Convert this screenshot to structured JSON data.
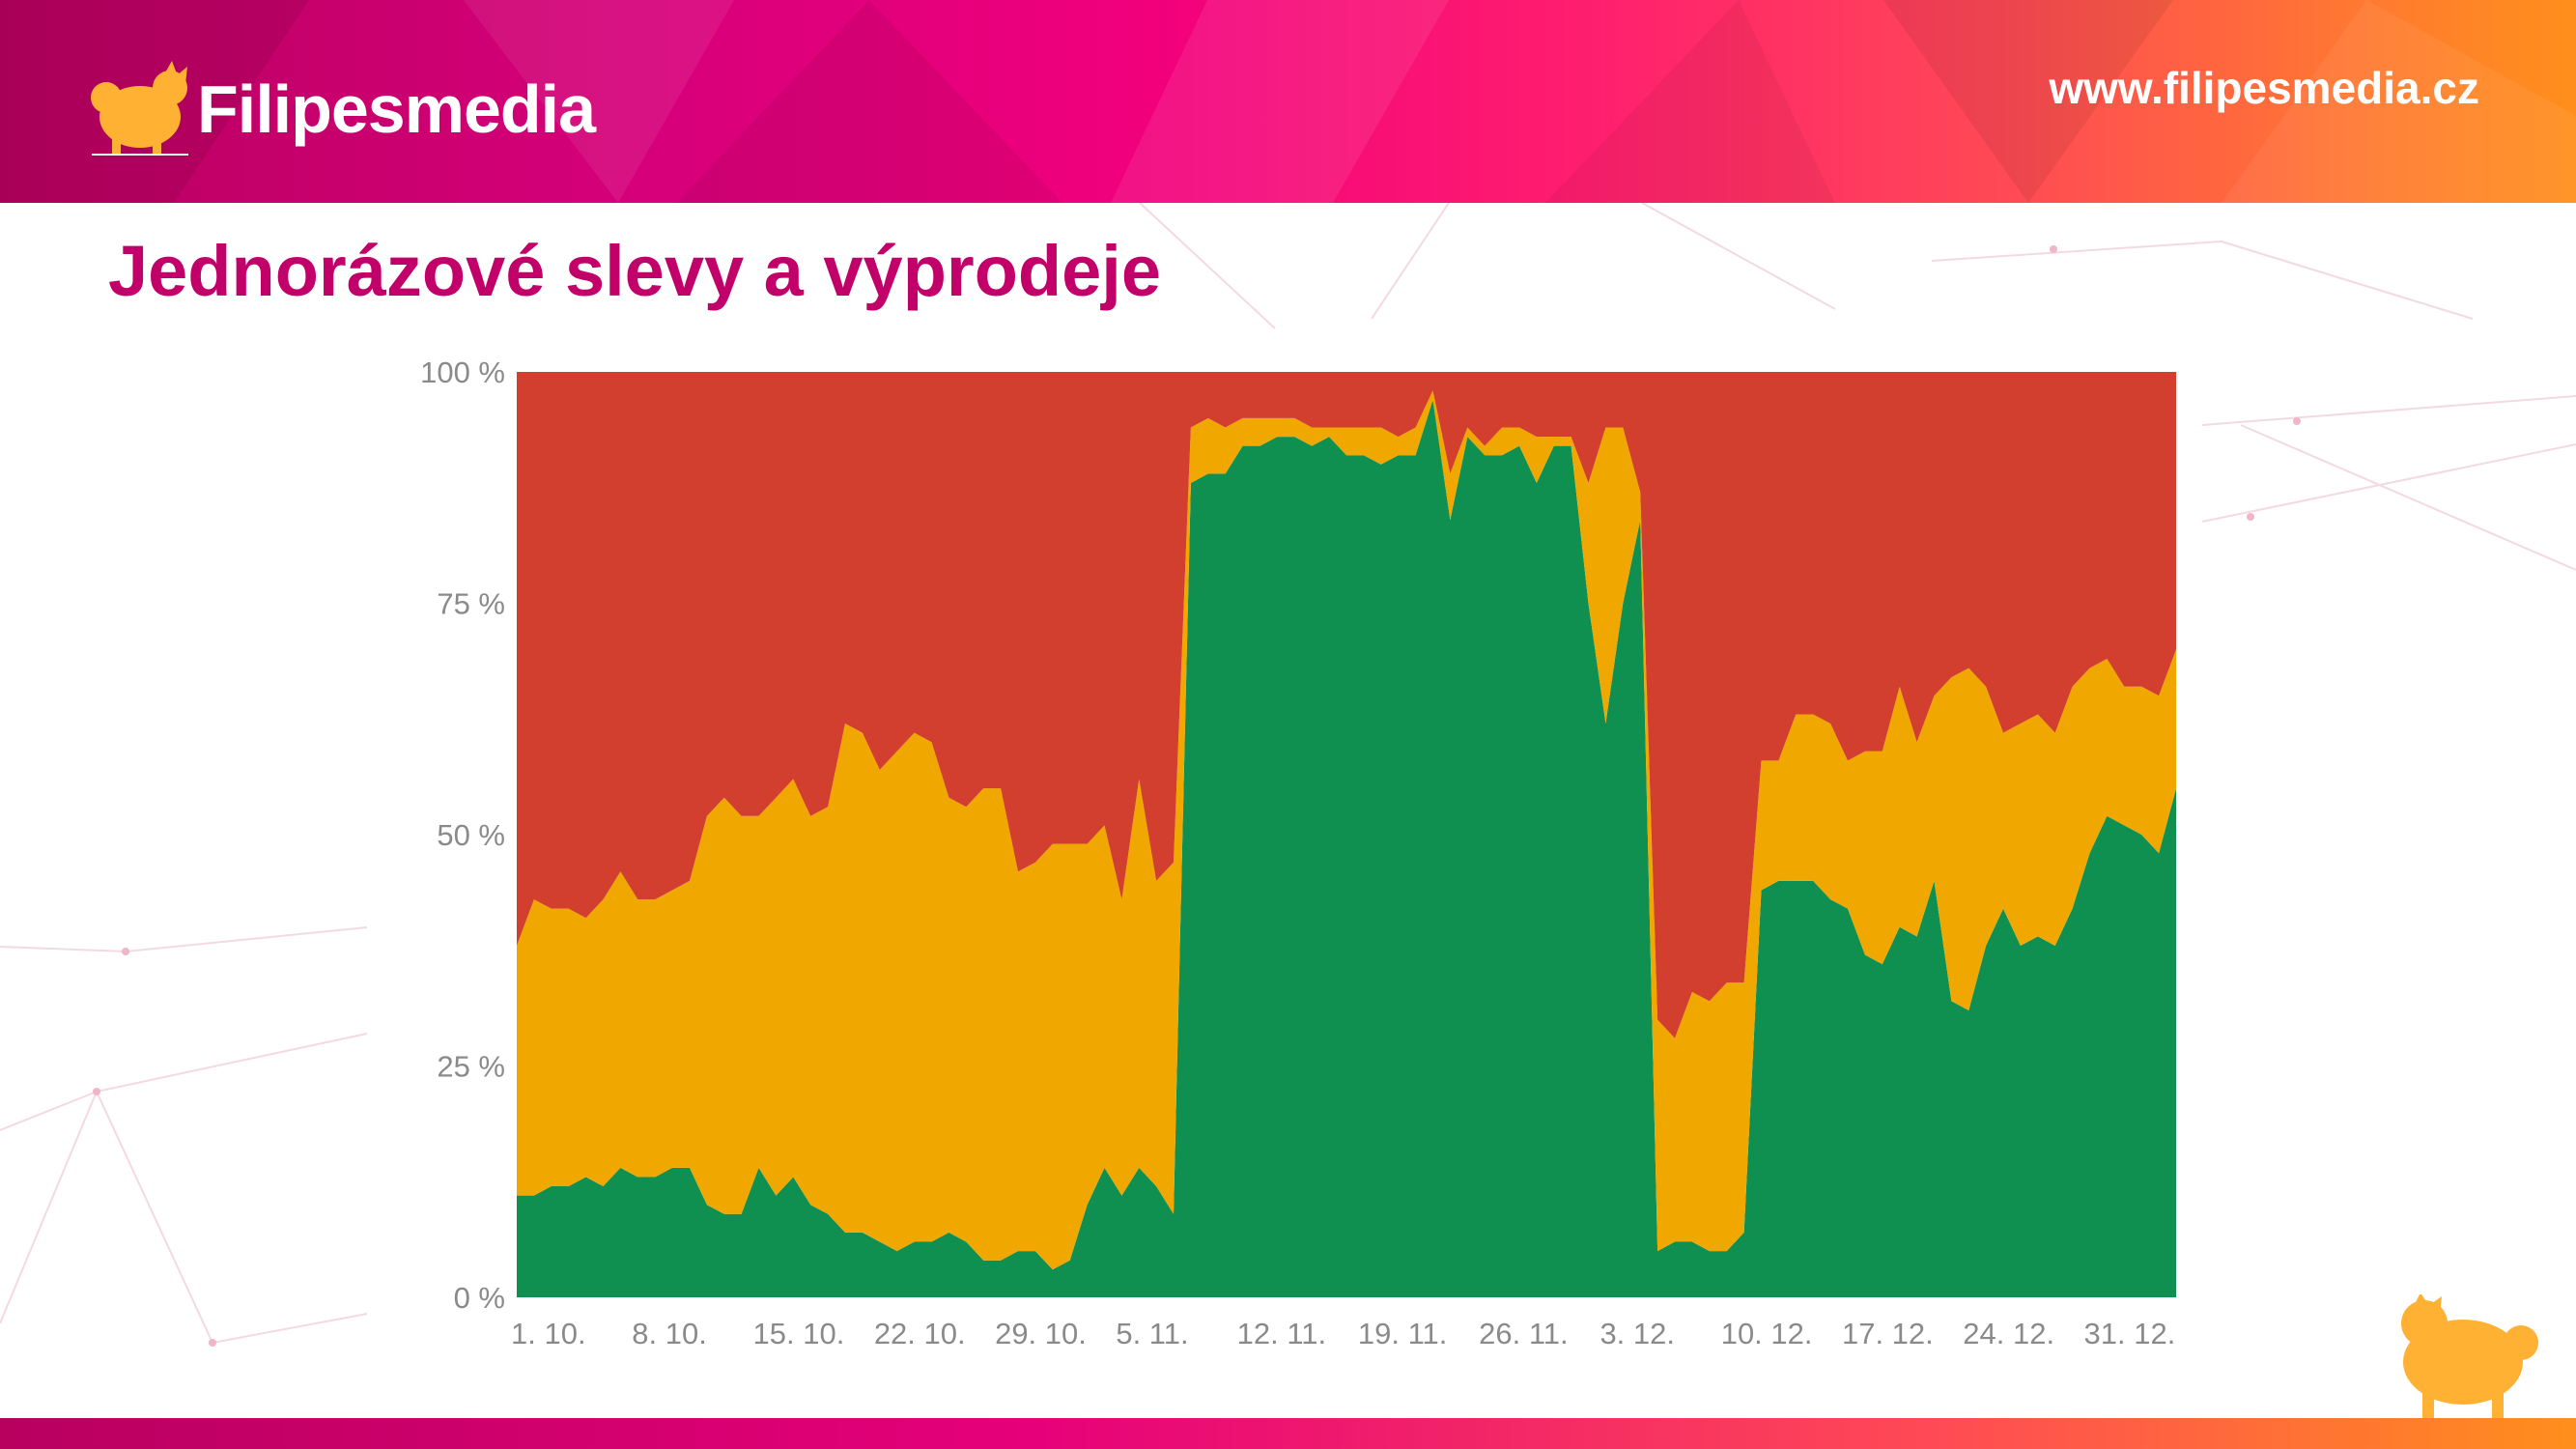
{
  "header": {
    "logo_text": "Filipesmedia",
    "site_url": "www.filipesmedia.cz"
  },
  "slide": {
    "title": "Jednorázové slevy a výprodeje"
  },
  "colors": {
    "green": "#0f8f50",
    "orange": "#f0a800",
    "red": "#d33f2f",
    "title": "#c2006a",
    "mascot": "#ffb133"
  },
  "icons": {
    "logo": "dog-logo-icon",
    "mascot": "dog-mascot-icon"
  },
  "chart_data": {
    "type": "area",
    "stacked": true,
    "normalized": true,
    "ylim": [
      0,
      100
    ],
    "y_ticks": [
      "0 %",
      "25 %",
      "50 %",
      "75 %",
      "100 %"
    ],
    "x_tick_labels": [
      "1. 10.",
      "8. 10.",
      "15. 10.",
      "22. 10.",
      "29. 10.",
      "5. 11.",
      "12. 11.",
      "19. 11.",
      "26. 11.",
      "3. 12.",
      "10. 12.",
      "17. 12.",
      "24. 12.",
      "31. 12."
    ],
    "x_tick_index": [
      0,
      7,
      14,
      21,
      28,
      35,
      42,
      49,
      56,
      63,
      70,
      77,
      84,
      91
    ],
    "series": [
      {
        "color": "#0f8f50",
        "values": [
          11,
          11,
          12,
          12,
          13,
          12,
          14,
          13,
          13,
          14,
          14,
          10,
          9,
          9,
          14,
          11,
          13,
          10,
          9,
          7,
          7,
          6,
          5,
          6,
          6,
          7,
          6,
          4,
          4,
          5,
          5,
          3,
          4,
          10,
          14,
          11,
          14,
          12,
          9,
          88,
          89,
          89,
          92,
          92,
          93,
          93,
          92,
          93,
          91,
          91,
          90,
          91,
          91,
          97,
          84,
          93,
          91,
          91,
          92,
          88,
          92,
          92,
          75,
          62,
          75,
          84,
          5,
          6,
          6,
          5,
          5,
          7,
          44,
          45,
          45,
          45,
          43,
          42,
          37,
          36,
          40,
          39,
          45,
          32,
          31,
          38,
          42,
          38,
          39,
          38,
          42,
          48,
          52,
          51,
          50,
          48,
          55
        ]
      },
      {
        "color": "#f0a800",
        "values": [
          27,
          32,
          30,
          30,
          28,
          31,
          32,
          30,
          30,
          30,
          31,
          42,
          45,
          43,
          38,
          43,
          43,
          42,
          44,
          55,
          54,
          51,
          54,
          55,
          54,
          47,
          47,
          51,
          51,
          41,
          42,
          46,
          45,
          39,
          37,
          32,
          42,
          33,
          38,
          6,
          6,
          5,
          3,
          3,
          2,
          2,
          2,
          1,
          3,
          3,
          4,
          2,
          3,
          1,
          5,
          1,
          1,
          3,
          2,
          5,
          1,
          1,
          13,
          32,
          19,
          3,
          25,
          22,
          27,
          27,
          29,
          27,
          14,
          13,
          18,
          18,
          19,
          16,
          22,
          23,
          26,
          21,
          20,
          35,
          37,
          28,
          19,
          24,
          24,
          23,
          24,
          20,
          17,
          15,
          16,
          17,
          15
        ]
      },
      {
        "color": "#d33f2f",
        "values": [
          62,
          57,
          58,
          58,
          59,
          57,
          54,
          57,
          57,
          56,
          55,
          48,
          46,
          48,
          48,
          46,
          44,
          48,
          47,
          38,
          39,
          43,
          41,
          39,
          40,
          46,
          47,
          45,
          45,
          54,
          53,
          51,
          51,
          51,
          49,
          57,
          44,
          55,
          53,
          6,
          5,
          6,
          5,
          5,
          5,
          5,
          6,
          6,
          6,
          6,
          6,
          7,
          6,
          2,
          11,
          6,
          8,
          6,
          6,
          7,
          7,
          7,
          12,
          6,
          6,
          13,
          70,
          72,
          67,
          68,
          66,
          66,
          42,
          42,
          37,
          37,
          38,
          42,
          41,
          41,
          34,
          40,
          35,
          33,
          32,
          34,
          39,
          38,
          37,
          39,
          34,
          32,
          31,
          34,
          34,
          35,
          30
        ]
      }
    ]
  }
}
